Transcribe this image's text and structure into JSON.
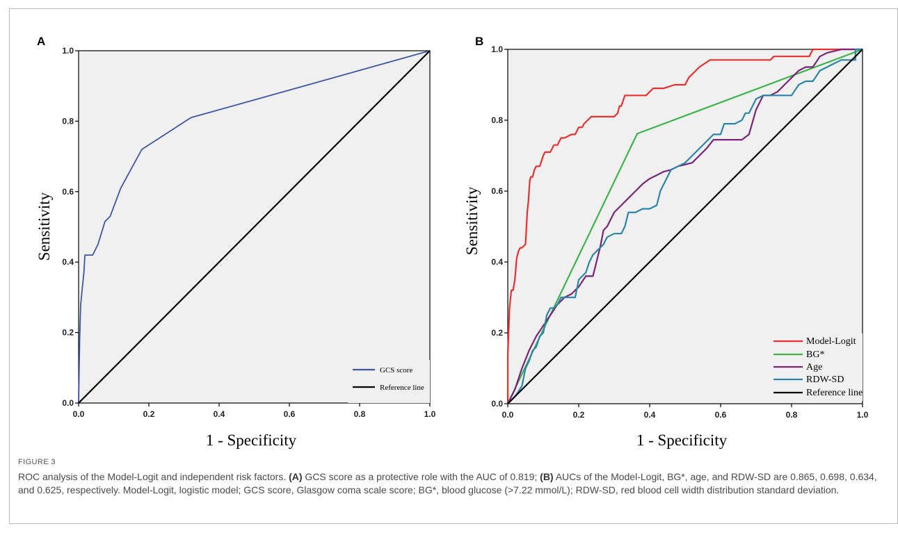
{
  "figure": {
    "label": "FIGURE 3",
    "caption_parts": [
      {
        "t": "ROC analysis of the Model-Logit and independent risk factors. ",
        "b": false
      },
      {
        "t": "(A)",
        "b": true
      },
      {
        "t": " GCS score as a protective role with the AUC of 0.819; ",
        "b": false
      },
      {
        "t": "(B)",
        "b": true
      },
      {
        "t": " AUCs of the Model-Logit, BG*, age, and RDW-SD are 0.865, 0.698, 0.634, and 0.625, respectively. Model-Logit, logistic model; GCS score, Glasgow coma scale score; BG*, blood glucose (>7.22 mmol/L); RDW-SD, red blood cell width distribution standard deviation.",
        "b": false
      }
    ]
  },
  "chart_data": [
    {
      "panel": "A",
      "type": "line",
      "xlabel": "1 - Specificity",
      "ylabel": "Sensitivity",
      "xlim": [
        0,
        1
      ],
      "ylim": [
        0,
        1
      ],
      "x_ticks": [
        "0.0",
        "0.2",
        "0.4",
        "0.6",
        "0.8",
        "1.0"
      ],
      "y_ticks": [
        "0.0",
        "0.2",
        "0.4",
        "0.6",
        "0.8",
        "1.0"
      ],
      "background": "#f0f0f0",
      "legend_position": "bottom-right",
      "series": [
        {
          "name": "GCS score",
          "color": "#3d55a5",
          "x": [
            0,
            0.003,
            0.006,
            0.01,
            0.015,
            0.018,
            0.02,
            0.04,
            0.055,
            0.075,
            0.09,
            0.12,
            0.18,
            0.32,
            1.0
          ],
          "y": [
            0,
            0.18,
            0.28,
            0.32,
            0.37,
            0.42,
            0.42,
            0.42,
            0.45,
            0.515,
            0.53,
            0.61,
            0.72,
            0.81,
            1.0
          ]
        },
        {
          "name": "Reference line",
          "color": "#000000",
          "x": [
            0,
            1
          ],
          "y": [
            0,
            1
          ]
        }
      ]
    },
    {
      "panel": "B",
      "type": "line",
      "xlabel": "1 - Specificity",
      "ylabel": "Sensitivity",
      "xlim": [
        0,
        1
      ],
      "ylim": [
        0,
        1
      ],
      "x_ticks": [
        "0.0",
        "0.2",
        "0.4",
        "0.6",
        "0.8",
        "1.0"
      ],
      "y_ticks": [
        "0.0",
        "0.2",
        "0.4",
        "0.6",
        "0.8",
        "1.0"
      ],
      "background": "#f0f0f0",
      "legend_position": "bottom-right",
      "series": [
        {
          "name": "Model-Logit",
          "color": "#e8302f",
          "x": [
            0,
            0,
            0.005,
            0.01,
            0.015,
            0.02,
            0.025,
            0.03,
            0.035,
            0.04,
            0.05,
            0.055,
            0.058,
            0.062,
            0.065,
            0.07,
            0.075,
            0.08,
            0.085,
            0.09,
            0.1,
            0.105,
            0.11,
            0.12,
            0.13,
            0.14,
            0.15,
            0.16,
            0.18,
            0.19,
            0.2,
            0.21,
            0.215,
            0.225,
            0.235,
            0.3,
            0.31,
            0.315,
            0.32,
            0.33,
            0.37,
            0.38,
            0.39,
            0.41,
            0.43,
            0.44,
            0.47,
            0.48,
            0.5,
            0.51,
            0.52,
            0.53,
            0.54,
            0.57,
            0.74,
            0.75,
            0.85,
            0.86,
            1.0
          ],
          "y": [
            0,
            0.14,
            0.27,
            0.32,
            0.32,
            0.35,
            0.41,
            0.43,
            0.44,
            0.44,
            0.45,
            0.54,
            0.57,
            0.63,
            0.64,
            0.64,
            0.66,
            0.67,
            0.67,
            0.67,
            0.7,
            0.71,
            0.71,
            0.71,
            0.73,
            0.73,
            0.75,
            0.75,
            0.76,
            0.76,
            0.78,
            0.78,
            0.79,
            0.8,
            0.81,
            0.81,
            0.82,
            0.84,
            0.84,
            0.87,
            0.87,
            0.87,
            0.87,
            0.89,
            0.89,
            0.89,
            0.9,
            0.9,
            0.9,
            0.92,
            0.93,
            0.94,
            0.95,
            0.97,
            0.97,
            0.98,
            0.98,
            1.0,
            1.0
          ]
        },
        {
          "name": "BG*",
          "color": "#3cb44a",
          "x": [
            0,
            0.365,
            1.0
          ],
          "y": [
            0,
            0.762,
            1.0
          ]
        },
        {
          "name": "Age",
          "color": "#7b2377",
          "x": [
            0,
            0.02,
            0.04,
            0.06,
            0.08,
            0.1,
            0.12,
            0.14,
            0.16,
            0.18,
            0.2,
            0.22,
            0.24,
            0.26,
            0.27,
            0.28,
            0.3,
            0.32,
            0.34,
            0.36,
            0.38,
            0.4,
            0.42,
            0.44,
            0.46,
            0.48,
            0.5,
            0.52,
            0.54,
            0.56,
            0.58,
            0.6,
            0.62,
            0.64,
            0.66,
            0.68,
            0.7,
            0.72,
            0.74,
            0.76,
            0.78,
            0.8,
            0.82,
            0.84,
            0.86,
            0.88,
            0.9,
            0.92,
            0.94,
            1.0
          ],
          "y": [
            0,
            0.04,
            0.1,
            0.15,
            0.19,
            0.22,
            0.25,
            0.28,
            0.3,
            0.31,
            0.33,
            0.36,
            0.36,
            0.44,
            0.49,
            0.5,
            0.54,
            0.56,
            0.58,
            0.6,
            0.62,
            0.635,
            0.645,
            0.655,
            0.66,
            0.67,
            0.675,
            0.68,
            0.7,
            0.72,
            0.745,
            0.745,
            0.745,
            0.745,
            0.745,
            0.76,
            0.83,
            0.87,
            0.87,
            0.88,
            0.9,
            0.92,
            0.94,
            0.95,
            0.95,
            0.98,
            0.99,
            0.995,
            1.0,
            1.0
          ]
        },
        {
          "name": "RDW-SD",
          "color": "#2a86a6",
          "x": [
            0,
            0.02,
            0.04,
            0.05,
            0.06,
            0.07,
            0.08,
            0.09,
            0.1,
            0.11,
            0.12,
            0.13,
            0.14,
            0.15,
            0.17,
            0.19,
            0.2,
            0.21,
            0.22,
            0.23,
            0.24,
            0.25,
            0.26,
            0.27,
            0.28,
            0.3,
            0.32,
            0.33,
            0.34,
            0.36,
            0.38,
            0.4,
            0.42,
            0.43,
            0.44,
            0.45,
            0.46,
            0.48,
            0.5,
            0.52,
            0.54,
            0.56,
            0.58,
            0.6,
            0.61,
            0.62,
            0.64,
            0.66,
            0.67,
            0.68,
            0.69,
            0.7,
            0.72,
            0.74,
            0.76,
            0.78,
            0.8,
            0.82,
            0.84,
            0.86,
            0.88,
            0.9,
            0.92,
            0.94,
            0.98,
            0.98,
            1.0
          ],
          "y": [
            0,
            0.02,
            0.05,
            0.1,
            0.12,
            0.15,
            0.16,
            0.19,
            0.2,
            0.25,
            0.27,
            0.27,
            0.28,
            0.3,
            0.3,
            0.3,
            0.35,
            0.36,
            0.37,
            0.4,
            0.42,
            0.43,
            0.44,
            0.45,
            0.47,
            0.48,
            0.48,
            0.5,
            0.54,
            0.54,
            0.55,
            0.55,
            0.56,
            0.6,
            0.62,
            0.64,
            0.66,
            0.67,
            0.68,
            0.7,
            0.72,
            0.74,
            0.76,
            0.76,
            0.79,
            0.79,
            0.79,
            0.8,
            0.82,
            0.82,
            0.84,
            0.86,
            0.87,
            0.87,
            0.87,
            0.87,
            0.87,
            0.9,
            0.91,
            0.91,
            0.94,
            0.95,
            0.96,
            0.97,
            0.97,
            1.0,
            1.0
          ]
        },
        {
          "name": "Reference line",
          "color": "#000000",
          "x": [
            0,
            1
          ],
          "y": [
            0,
            1
          ]
        }
      ]
    }
  ]
}
